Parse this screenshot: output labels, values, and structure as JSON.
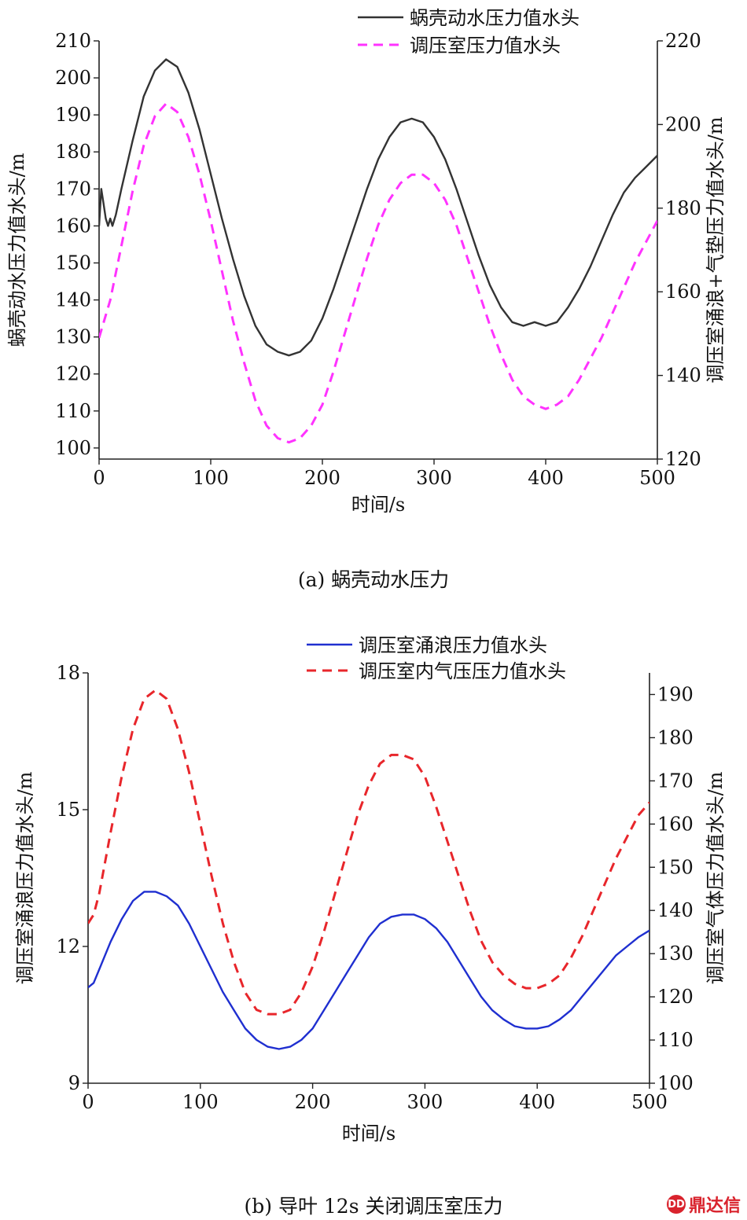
{
  "chart_data": [
    {
      "type": "line",
      "caption": "(a)   蜗壳动水压力",
      "xlabel": "时间/s",
      "ylabel_left": "蜗壳动水压力值水头/m",
      "ylabel_right": "调压室涌浪+气垫压力值水头/m",
      "xlim": [
        0,
        500
      ],
      "xticks": [
        0,
        100,
        200,
        300,
        400,
        500
      ],
      "ylim_left": [
        97,
        210
      ],
      "yticks_left": [
        100,
        110,
        120,
        130,
        140,
        150,
        160,
        170,
        180,
        190,
        200,
        210
      ],
      "ylim_right": [
        120,
        220
      ],
      "yticks_right": [
        120,
        140,
        160,
        180,
        200,
        220
      ],
      "legend_position": "top-right",
      "series": [
        {
          "name": "蜗壳动水压力值水头",
          "axis": "left",
          "color": "#333333",
          "style": "solid",
          "x": [
            0,
            2,
            4,
            6,
            8,
            10,
            12,
            15,
            20,
            30,
            40,
            50,
            60,
            70,
            80,
            90,
            100,
            110,
            120,
            130,
            140,
            150,
            160,
            170,
            180,
            190,
            200,
            210,
            220,
            230,
            240,
            250,
            260,
            270,
            280,
            290,
            300,
            310,
            320,
            330,
            340,
            350,
            360,
            370,
            380,
            390,
            400,
            410,
            420,
            430,
            440,
            450,
            460,
            470,
            480,
            490,
            500
          ],
          "y": [
            160,
            170,
            166,
            162,
            160,
            162,
            160,
            163,
            170,
            183,
            195,
            202,
            205,
            203,
            196,
            186,
            174,
            162,
            151,
            141,
            133,
            128,
            126,
            125,
            126,
            129,
            135,
            143,
            152,
            161,
            170,
            178,
            184,
            188,
            189,
            188,
            184,
            178,
            170,
            161,
            152,
            144,
            138,
            134,
            133,
            134,
            133,
            134,
            138,
            143,
            149,
            156,
            163,
            169,
            173,
            176,
            179
          ]
        },
        {
          "name": "调压室压力值水头",
          "axis": "right",
          "color": "#ff33ff",
          "style": "dashed",
          "x": [
            0,
            10,
            20,
            30,
            40,
            50,
            60,
            70,
            80,
            90,
            100,
            110,
            120,
            130,
            140,
            150,
            160,
            170,
            180,
            190,
            200,
            210,
            220,
            230,
            240,
            250,
            260,
            270,
            280,
            290,
            300,
            310,
            320,
            330,
            340,
            350,
            360,
            370,
            380,
            390,
            400,
            410,
            420,
            430,
            440,
            450,
            460,
            470,
            480,
            490,
            500
          ],
          "y": [
            149,
            158,
            171,
            184,
            195,
            202,
            205,
            203,
            197,
            188,
            177,
            165,
            153,
            143,
            134,
            128,
            125,
            124,
            125,
            128,
            133,
            141,
            150,
            159,
            168,
            176,
            182,
            186,
            188,
            188,
            186,
            182,
            176,
            168,
            160,
            152,
            145,
            139,
            135,
            133,
            132,
            133,
            135,
            139,
            144,
            149,
            155,
            161,
            167,
            172,
            177
          ]
        }
      ]
    },
    {
      "type": "line",
      "caption": "(b)   导叶 12s 关闭调压室压力",
      "xlabel": "时间/s",
      "ylabel_left": "调压室涌浪压力值水头/m",
      "ylabel_right": "调压室气体压力值水头/m",
      "xlim": [
        0,
        500
      ],
      "xticks": [
        0,
        100,
        200,
        300,
        400,
        500
      ],
      "ylim_left": [
        9,
        18
      ],
      "yticks_left": [
        9,
        12,
        15,
        18
      ],
      "ylim_right": [
        100,
        195
      ],
      "yticks_right": [
        100,
        110,
        120,
        130,
        140,
        150,
        160,
        170,
        180,
        190
      ],
      "legend_position": "top-right",
      "series": [
        {
          "name": "调压室涌浪压力值水头",
          "axis": "left",
          "color": "#1f2fd0",
          "style": "solid",
          "x": [
            0,
            5,
            10,
            20,
            30,
            40,
            50,
            60,
            70,
            80,
            90,
            100,
            110,
            120,
            130,
            140,
            150,
            160,
            170,
            180,
            190,
            200,
            210,
            220,
            230,
            240,
            250,
            260,
            270,
            280,
            290,
            300,
            310,
            320,
            330,
            340,
            350,
            360,
            370,
            380,
            390,
            400,
            410,
            420,
            430,
            440,
            450,
            460,
            470,
            480,
            490,
            500
          ],
          "y": [
            11.1,
            11.2,
            11.5,
            12.1,
            12.6,
            13.0,
            13.2,
            13.2,
            13.1,
            12.9,
            12.5,
            12.0,
            11.5,
            11.0,
            10.6,
            10.2,
            9.95,
            9.8,
            9.75,
            9.8,
            9.95,
            10.2,
            10.6,
            11.0,
            11.4,
            11.8,
            12.2,
            12.5,
            12.65,
            12.7,
            12.7,
            12.6,
            12.4,
            12.1,
            11.7,
            11.3,
            10.9,
            10.6,
            10.4,
            10.25,
            10.2,
            10.2,
            10.25,
            10.4,
            10.6,
            10.9,
            11.2,
            11.5,
            11.8,
            12.0,
            12.2,
            12.35
          ]
        },
        {
          "name": "调压室内气压压力值水头",
          "axis": "right",
          "color": "#e8262b",
          "style": "dashed",
          "x": [
            0,
            5,
            10,
            20,
            30,
            40,
            50,
            60,
            70,
            80,
            90,
            100,
            110,
            120,
            130,
            140,
            150,
            160,
            170,
            180,
            190,
            200,
            210,
            220,
            230,
            240,
            250,
            260,
            270,
            280,
            290,
            300,
            310,
            320,
            330,
            340,
            350,
            360,
            370,
            380,
            390,
            400,
            410,
            420,
            430,
            440,
            450,
            460,
            470,
            480,
            490,
            500
          ],
          "y": [
            137,
            139,
            144,
            158,
            171,
            182,
            189,
            191,
            189,
            182,
            172,
            160,
            148,
            137,
            128,
            121,
            117,
            116,
            116,
            117,
            121,
            127,
            135,
            144,
            153,
            162,
            169,
            174,
            176,
            176,
            175,
            171,
            164,
            156,
            148,
            140,
            133,
            128,
            125,
            123,
            122,
            122,
            123,
            125,
            129,
            134,
            140,
            146,
            152,
            157,
            162,
            165
          ]
        }
      ]
    }
  ],
  "watermark": {
    "badge": "DD",
    "text": "鼎达信"
  }
}
